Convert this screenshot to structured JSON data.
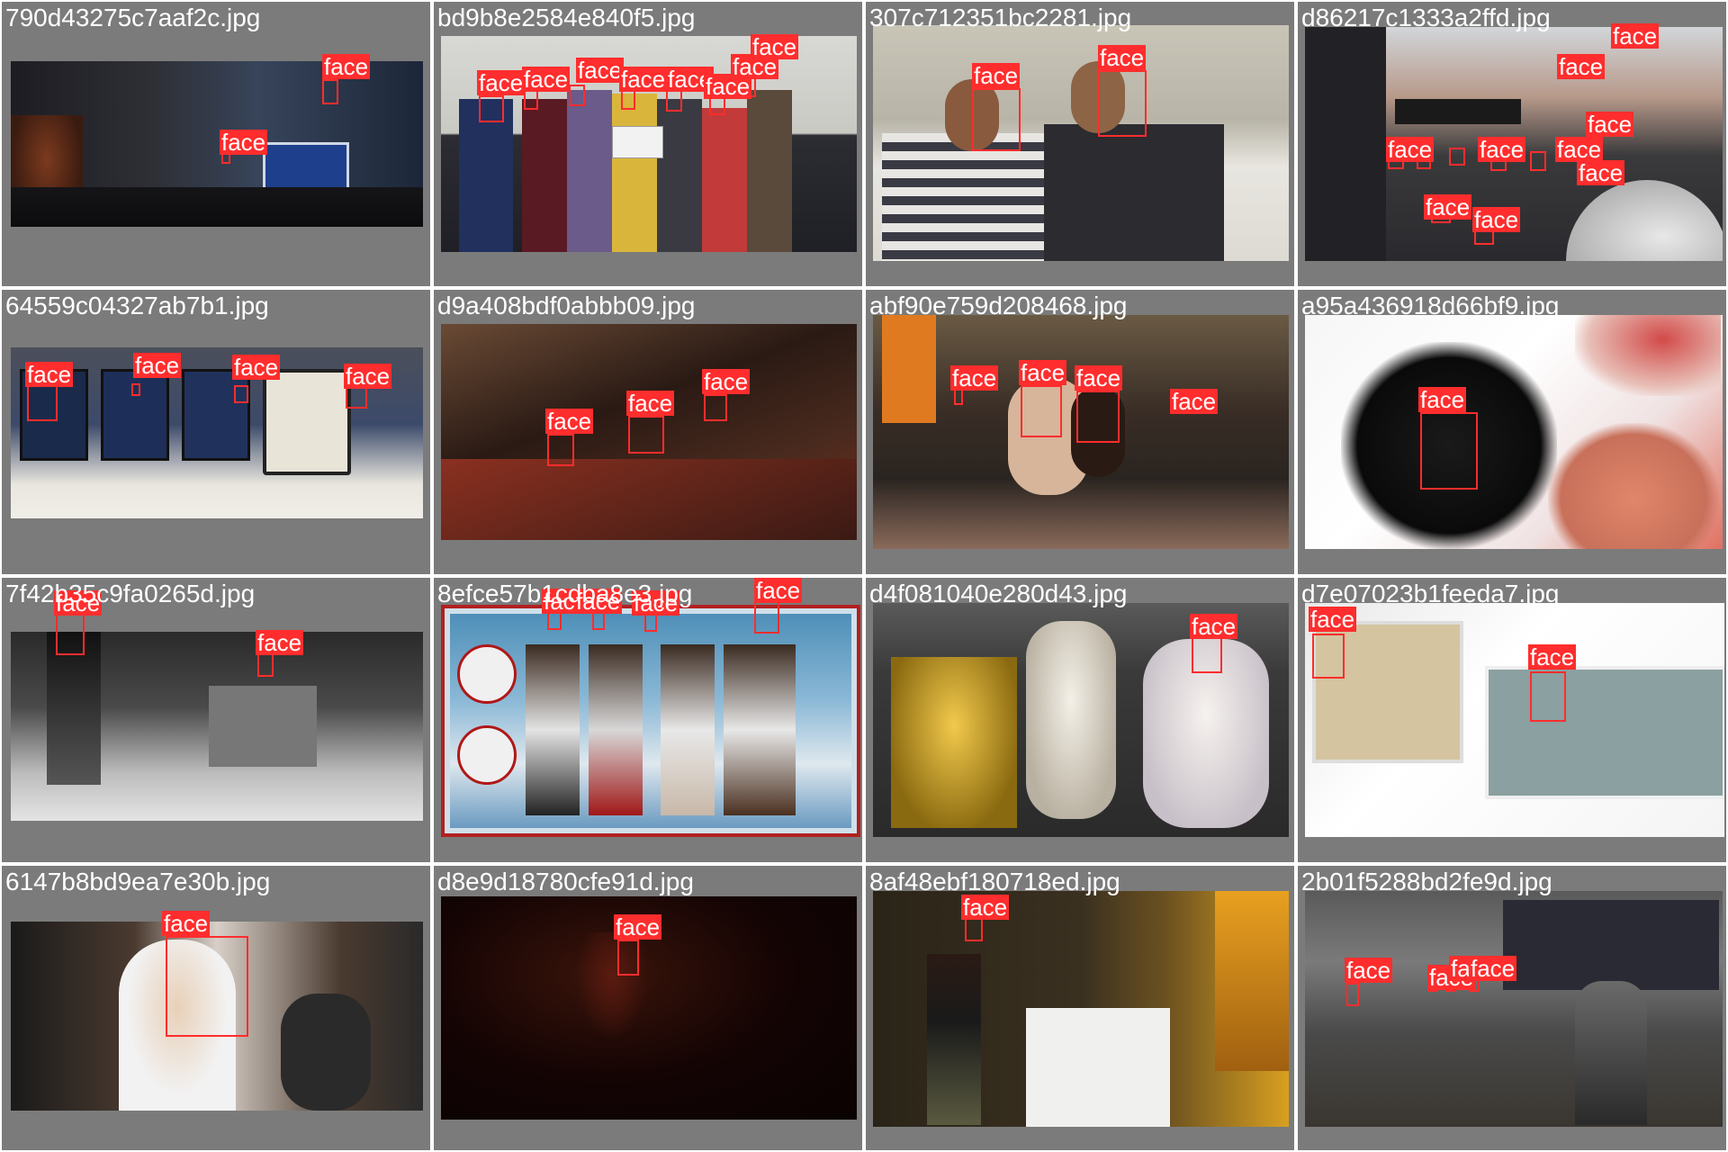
{
  "label": "face",
  "colors": {
    "background": "#7b7b7b",
    "box": "#ff2d2d",
    "text": "#ffffff"
  },
  "cells": [
    {
      "filename": "790d43275c7aaf2c.jpg"
    },
    {
      "filename": "bd9b8e2584e840f5.jpg"
    },
    {
      "filename": "307c712351bc2281.jpg"
    },
    {
      "filename": "d86217c1333a2ffd.jpg"
    },
    {
      "filename": "64559c04327ab7b1.jpg"
    },
    {
      "filename": "d9a408bdf0abbb09.jpg"
    },
    {
      "filename": "abf90e759d208468.jpg"
    },
    {
      "filename": "a95a436918d66bf9.jpg"
    },
    {
      "filename": "7f42b35c9fa0265d.jpg"
    },
    {
      "filename": "8efce57b1cdba8e3.jpg"
    },
    {
      "filename": "d4f081040e280d43.jpg"
    },
    {
      "filename": "d7e07023b1feeda7.jpg"
    },
    {
      "filename": "6147b8bd9ea7e30b.jpg"
    },
    {
      "filename": "d8e9d18780cfe91d.jpg"
    },
    {
      "filename": "8af48ebf180718ed.jpg"
    },
    {
      "filename": "2b01f5288bd2fe9d.jpg"
    }
  ]
}
